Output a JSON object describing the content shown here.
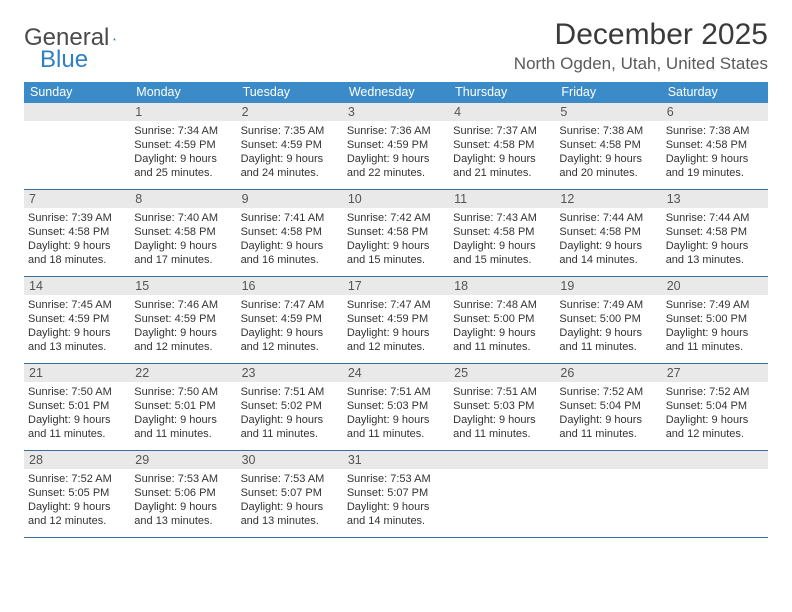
{
  "logo": {
    "text_dark": "General",
    "text_blue": "Blue"
  },
  "title": "December 2025",
  "subtitle": "North Ogden, Utah, United States",
  "colors": {
    "header_bg": "#3b8bc8",
    "header_fg": "#ffffff",
    "week_divider": "#3b6fa0",
    "daynum_bg": "#e9e9e9",
    "daynum_fg": "#555555",
    "body_fg": "#333333"
  },
  "dayNames": [
    "Sunday",
    "Monday",
    "Tuesday",
    "Wednesday",
    "Thursday",
    "Friday",
    "Saturday"
  ],
  "weeks": [
    [
      null,
      {
        "n": "1",
        "sunrise": "7:34 AM",
        "sunset": "4:59 PM",
        "daylight": "9 hours and 25 minutes."
      },
      {
        "n": "2",
        "sunrise": "7:35 AM",
        "sunset": "4:59 PM",
        "daylight": "9 hours and 24 minutes."
      },
      {
        "n": "3",
        "sunrise": "7:36 AM",
        "sunset": "4:59 PM",
        "daylight": "9 hours and 22 minutes."
      },
      {
        "n": "4",
        "sunrise": "7:37 AM",
        "sunset": "4:58 PM",
        "daylight": "9 hours and 21 minutes."
      },
      {
        "n": "5",
        "sunrise": "7:38 AM",
        "sunset": "4:58 PM",
        "daylight": "9 hours and 20 minutes."
      },
      {
        "n": "6",
        "sunrise": "7:38 AM",
        "sunset": "4:58 PM",
        "daylight": "9 hours and 19 minutes."
      }
    ],
    [
      {
        "n": "7",
        "sunrise": "7:39 AM",
        "sunset": "4:58 PM",
        "daylight": "9 hours and 18 minutes."
      },
      {
        "n": "8",
        "sunrise": "7:40 AM",
        "sunset": "4:58 PM",
        "daylight": "9 hours and 17 minutes."
      },
      {
        "n": "9",
        "sunrise": "7:41 AM",
        "sunset": "4:58 PM",
        "daylight": "9 hours and 16 minutes."
      },
      {
        "n": "10",
        "sunrise": "7:42 AM",
        "sunset": "4:58 PM",
        "daylight": "9 hours and 15 minutes."
      },
      {
        "n": "11",
        "sunrise": "7:43 AM",
        "sunset": "4:58 PM",
        "daylight": "9 hours and 15 minutes."
      },
      {
        "n": "12",
        "sunrise": "7:44 AM",
        "sunset": "4:58 PM",
        "daylight": "9 hours and 14 minutes."
      },
      {
        "n": "13",
        "sunrise": "7:44 AM",
        "sunset": "4:58 PM",
        "daylight": "9 hours and 13 minutes."
      }
    ],
    [
      {
        "n": "14",
        "sunrise": "7:45 AM",
        "sunset": "4:59 PM",
        "daylight": "9 hours and 13 minutes."
      },
      {
        "n": "15",
        "sunrise": "7:46 AM",
        "sunset": "4:59 PM",
        "daylight": "9 hours and 12 minutes."
      },
      {
        "n": "16",
        "sunrise": "7:47 AM",
        "sunset": "4:59 PM",
        "daylight": "9 hours and 12 minutes."
      },
      {
        "n": "17",
        "sunrise": "7:47 AM",
        "sunset": "4:59 PM",
        "daylight": "9 hours and 12 minutes."
      },
      {
        "n": "18",
        "sunrise": "7:48 AM",
        "sunset": "5:00 PM",
        "daylight": "9 hours and 11 minutes."
      },
      {
        "n": "19",
        "sunrise": "7:49 AM",
        "sunset": "5:00 PM",
        "daylight": "9 hours and 11 minutes."
      },
      {
        "n": "20",
        "sunrise": "7:49 AM",
        "sunset": "5:00 PM",
        "daylight": "9 hours and 11 minutes."
      }
    ],
    [
      {
        "n": "21",
        "sunrise": "7:50 AM",
        "sunset": "5:01 PM",
        "daylight": "9 hours and 11 minutes."
      },
      {
        "n": "22",
        "sunrise": "7:50 AM",
        "sunset": "5:01 PM",
        "daylight": "9 hours and 11 minutes."
      },
      {
        "n": "23",
        "sunrise": "7:51 AM",
        "sunset": "5:02 PM",
        "daylight": "9 hours and 11 minutes."
      },
      {
        "n": "24",
        "sunrise": "7:51 AM",
        "sunset": "5:03 PM",
        "daylight": "9 hours and 11 minutes."
      },
      {
        "n": "25",
        "sunrise": "7:51 AM",
        "sunset": "5:03 PM",
        "daylight": "9 hours and 11 minutes."
      },
      {
        "n": "26",
        "sunrise": "7:52 AM",
        "sunset": "5:04 PM",
        "daylight": "9 hours and 11 minutes."
      },
      {
        "n": "27",
        "sunrise": "7:52 AM",
        "sunset": "5:04 PM",
        "daylight": "9 hours and 12 minutes."
      }
    ],
    [
      {
        "n": "28",
        "sunrise": "7:52 AM",
        "sunset": "5:05 PM",
        "daylight": "9 hours and 12 minutes."
      },
      {
        "n": "29",
        "sunrise": "7:53 AM",
        "sunset": "5:06 PM",
        "daylight": "9 hours and 13 minutes."
      },
      {
        "n": "30",
        "sunrise": "7:53 AM",
        "sunset": "5:07 PM",
        "daylight": "9 hours and 13 minutes."
      },
      {
        "n": "31",
        "sunrise": "7:53 AM",
        "sunset": "5:07 PM",
        "daylight": "9 hours and 14 minutes."
      },
      null,
      null,
      null
    ]
  ],
  "labels": {
    "sunrise": "Sunrise:",
    "sunset": "Sunset:",
    "daylight": "Daylight:"
  }
}
